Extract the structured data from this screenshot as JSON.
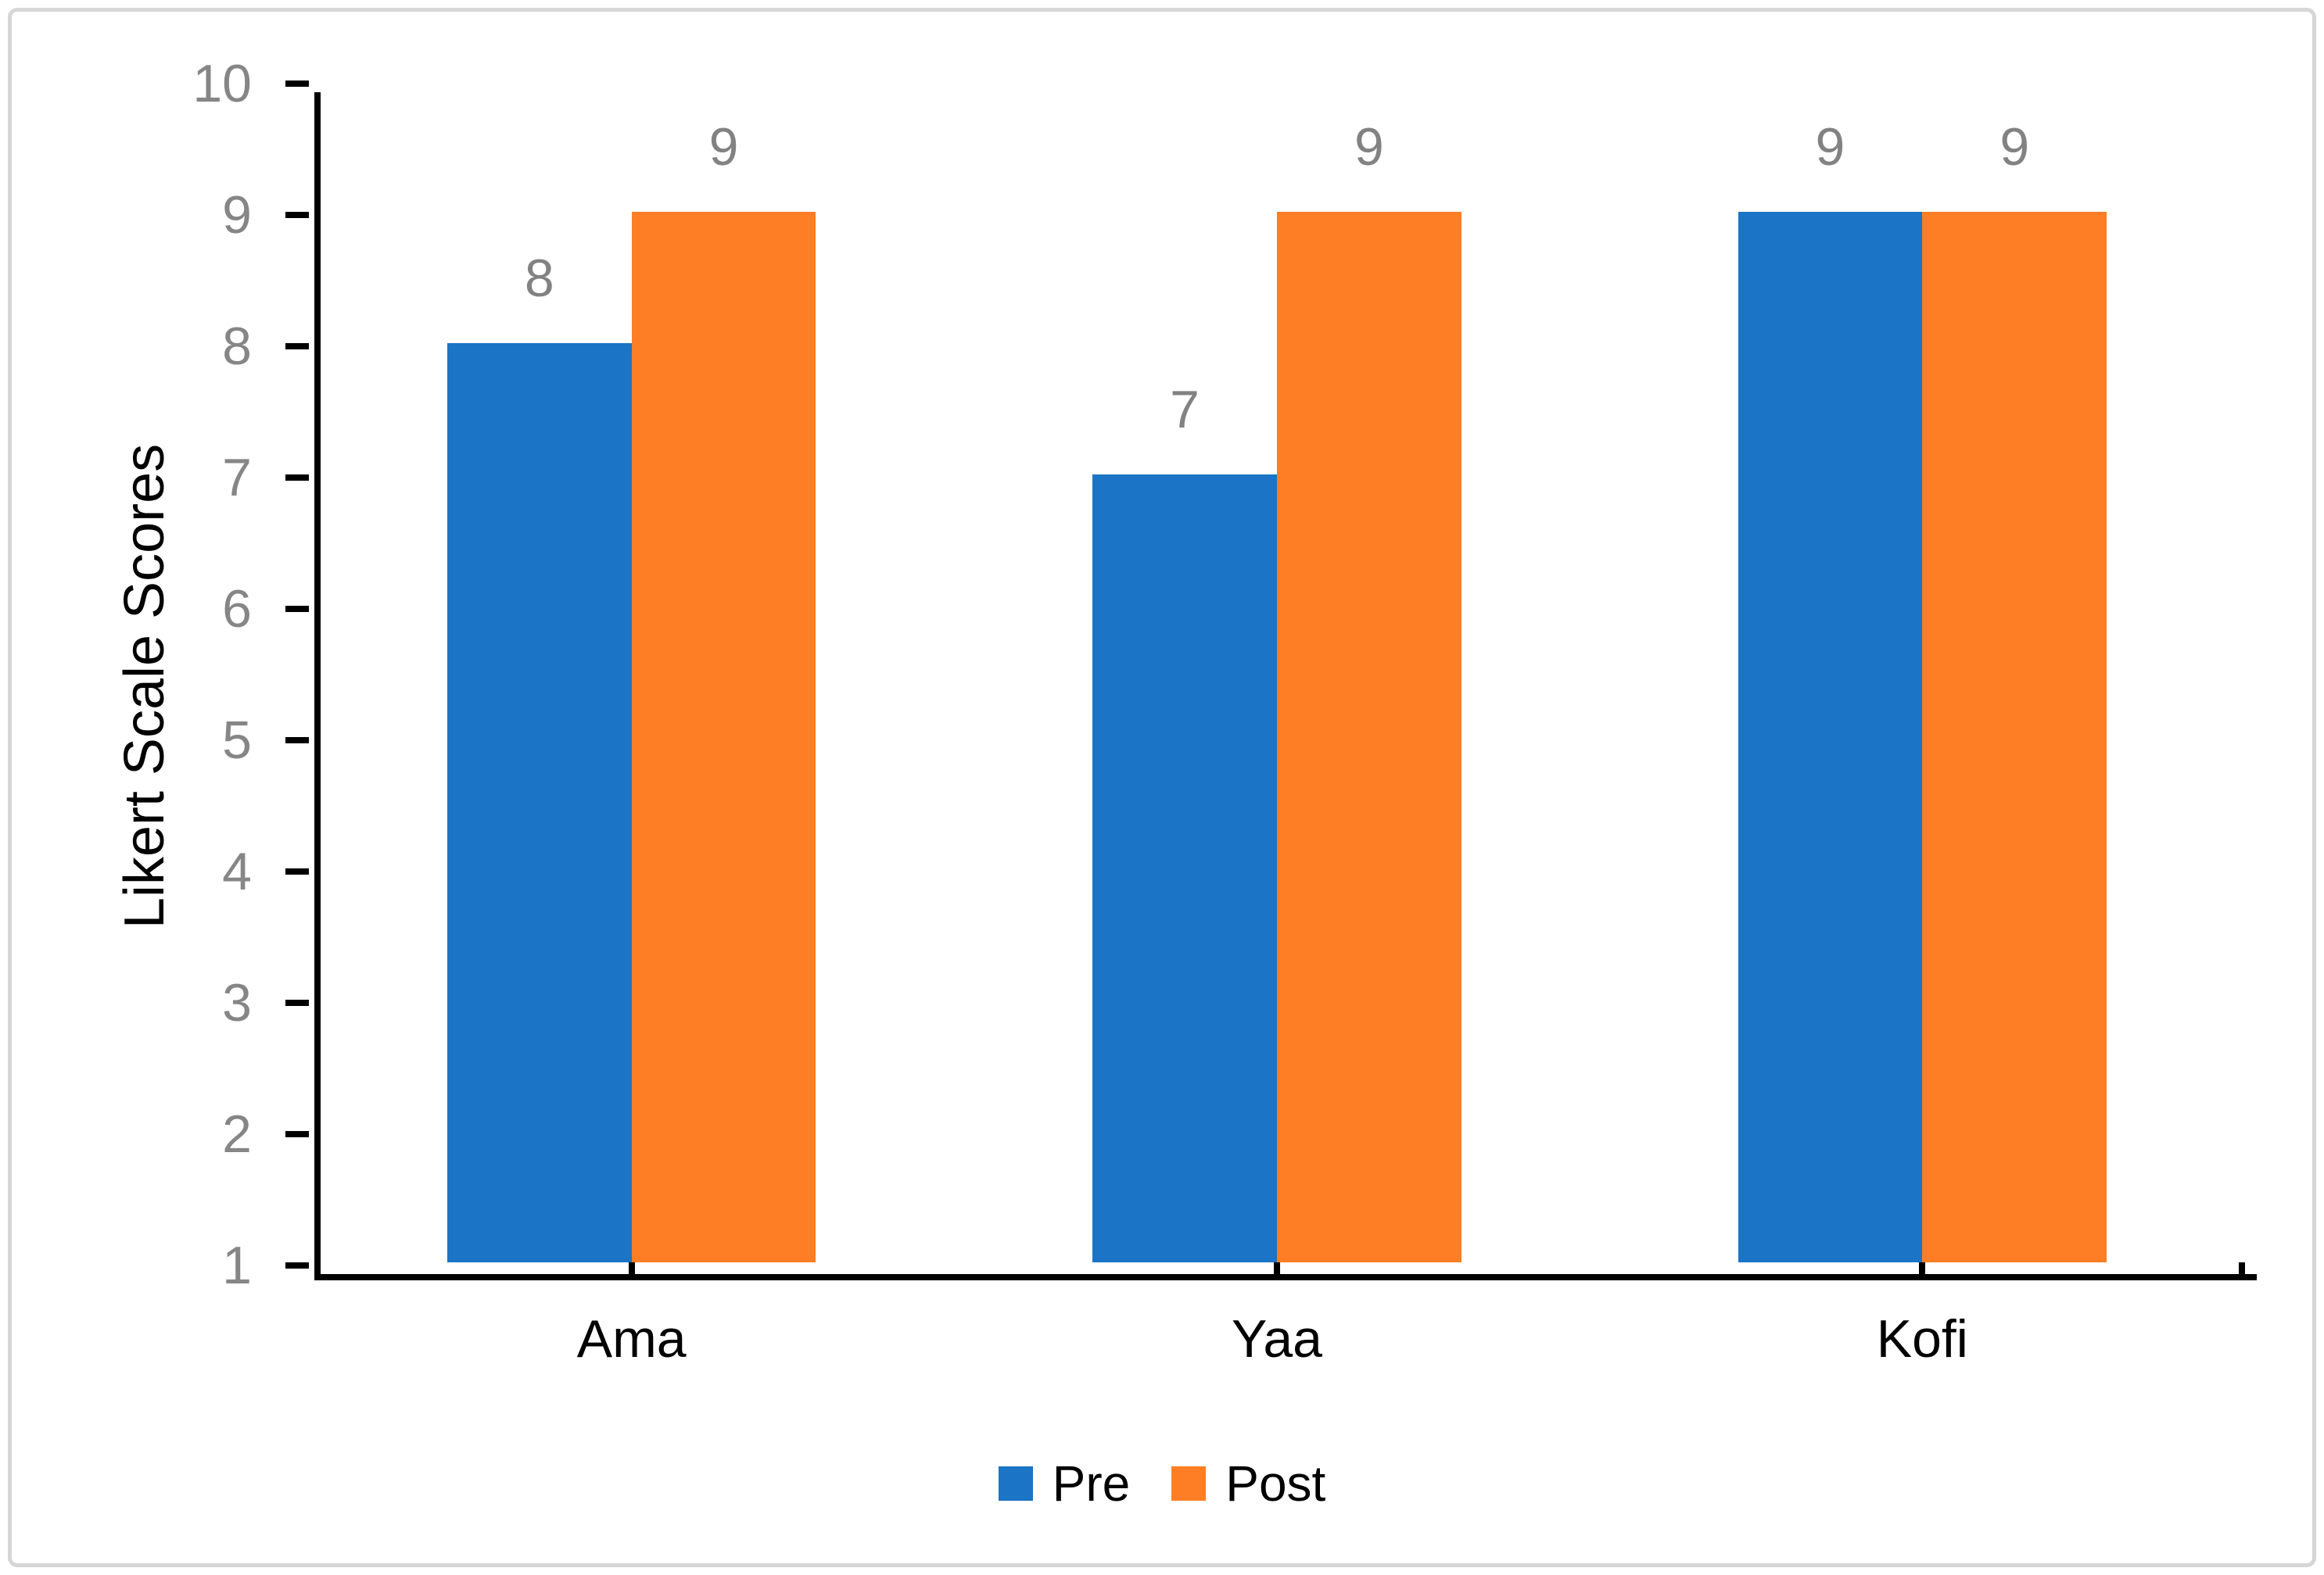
{
  "chart_data": {
    "type": "bar",
    "title": "",
    "categories": [
      "Ama",
      "Yaa",
      "Kofi"
    ],
    "series": [
      {
        "name": "Pre",
        "color": "#1B74C6",
        "values": [
          8,
          7,
          9
        ]
      },
      {
        "name": "Post",
        "color": "#FD7E24",
        "values": [
          9,
          9,
          9
        ]
      }
    ],
    "xlabel": "",
    "ylabel": "Likert Scale Scores",
    "ylim": [
      1,
      10
    ],
    "yticks": [
      1,
      2,
      3,
      4,
      5,
      6,
      7,
      8,
      9,
      10
    ],
    "grid": false,
    "data_labels_shown": true,
    "legend_position": "bottom-center",
    "legend_entries": [
      "Pre",
      "Post"
    ]
  },
  "colors": {
    "axis": "#000000",
    "tick_label": "#868686",
    "data_label": "#828282",
    "category_label": "#000000",
    "legend_text": "#000000",
    "frame_border": "#d6d6d6",
    "background": "#ffffff",
    "series_pre": "#1B74C6",
    "series_post": "#FD7E24"
  }
}
